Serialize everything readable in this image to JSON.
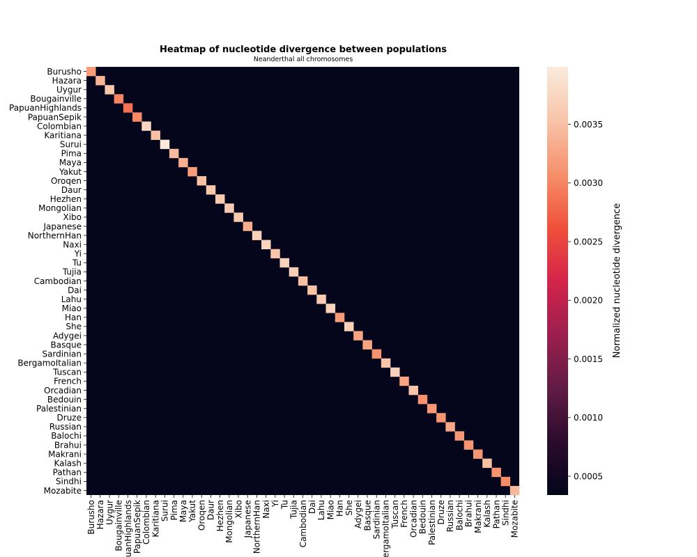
{
  "chart_data": {
    "type": "heatmap",
    "title": "Heatmap of nucleotide divergence between populations",
    "subtitle": "Neanderthal all chromosomes",
    "xlabel": "",
    "ylabel": "",
    "populations": [
      "Burusho",
      "Hazara",
      "Uygur",
      "Bougainville",
      "PapuanHighlands",
      "PapuanSepik",
      "Colombian",
      "Karitiana",
      "Surui",
      "Pima",
      "Maya",
      "Yakut",
      "Oroqen",
      "Daur",
      "Hezhen",
      "Mongolian",
      "Xibo",
      "Japanese",
      "NorthernHan",
      "Naxi",
      "Yi",
      "Tu",
      "Tujia",
      "Cambodian",
      "Dai",
      "Lahu",
      "Miao",
      "Han",
      "She",
      "Adygei",
      "Basque",
      "Sardinian",
      "BergamoItalian",
      "Tuscan",
      "French",
      "Orcadian",
      "Bedouin",
      "Palestinian",
      "Druze",
      "Russian",
      "Balochi",
      "Brahui",
      "Makrani",
      "Kalash",
      "Pathan",
      "Sindhi",
      "Mozabite"
    ],
    "diagonal_values": [
      0.00318,
      0.0034,
      0.00358,
      0.003,
      0.00285,
      0.00302,
      0.00375,
      0.0035,
      0.00398,
      0.00345,
      0.00335,
      0.00318,
      0.0035,
      0.00358,
      0.0036,
      0.00362,
      0.0036,
      0.00332,
      0.00368,
      0.00372,
      0.00355,
      0.0037,
      0.00365,
      0.0035,
      0.00352,
      0.00362,
      0.0037,
      0.00318,
      0.00368,
      0.00325,
      0.00325,
      0.0031,
      0.00355,
      0.0037,
      0.00325,
      0.00355,
      0.0031,
      0.00315,
      0.00312,
      0.00328,
      0.00315,
      0.00312,
      0.00312,
      0.0035,
      0.0031,
      0.00305,
      0.00345
    ],
    "off_diagonal_baseline": 0.00036,
    "colorbar": {
      "label": "Normalized nucleotide divergence",
      "min": 0.00034,
      "max": 0.00399,
      "ticks": [
        0.0005,
        0.001,
        0.0015,
        0.002,
        0.0025,
        0.003,
        0.0035
      ],
      "tick_labels": [
        "0.0005",
        "0.0010",
        "0.0015",
        "0.0020",
        "0.0025",
        "0.0030",
        "0.0035"
      ]
    },
    "colormap": [
      "#03051a",
      "#2b0b2e",
      "#611c44",
      "#9c1f4f",
      "#d5244b",
      "#f0513a",
      "#f6906b",
      "#f8c4a8",
      "#faebdd"
    ]
  }
}
